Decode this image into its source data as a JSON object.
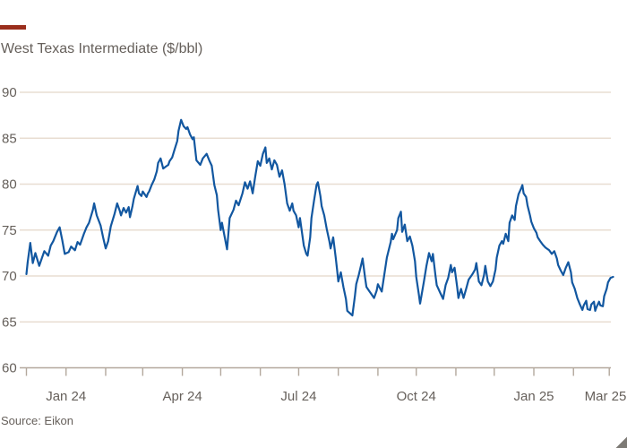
{
  "header": {
    "title": "West Texas Intermediate ($/bbl)"
  },
  "footer": {
    "source": "Source: Eikon"
  },
  "colors": {
    "line": "#1257a0",
    "grid": "#e8ddd2",
    "axis": "#b3a89d",
    "text": "#66605b",
    "background": "#ffffff",
    "brand_bar": "#9a2e1c",
    "corner_wedge": "#7d7a75"
  },
  "chart_data": {
    "type": "line",
    "title": "West Texas Intermediate ($/bbl)",
    "source": "Source: Eikon",
    "xlabel": "",
    "ylabel": "$/bbl",
    "ylim": [
      60,
      90
    ],
    "y_ticks": [
      60,
      65,
      70,
      75,
      80,
      85,
      90
    ],
    "grid": "horizontal",
    "legend": "none",
    "x_range": [
      "2023-12-01",
      "2025-03-01"
    ],
    "x_minor_ticks": "monthly",
    "x_tick_labels": [
      {
        "date": "2024-01-01",
        "label": "Jan 24"
      },
      {
        "date": "2024-04-01",
        "label": "Apr 24"
      },
      {
        "date": "2024-07-01",
        "label": "Jul 24"
      },
      {
        "date": "2024-10-01",
        "label": "Oct 24"
      },
      {
        "date": "2025-01-01",
        "label": "Jan 25"
      },
      {
        "date": "2025-03-01",
        "label": "Mar 25"
      }
    ],
    "series": [
      {
        "name": "WTI",
        "color": "#1257a0",
        "points": [
          [
            "2023-12-01",
            70.2
          ],
          [
            "2023-12-02",
            71.5
          ],
          [
            "2023-12-04",
            73.6
          ],
          [
            "2023-12-06",
            71.4
          ],
          [
            "2023-12-08",
            72.5
          ],
          [
            "2023-12-11",
            71.1
          ],
          [
            "2023-12-13",
            71.9
          ],
          [
            "2023-12-15",
            72.7
          ],
          [
            "2023-12-18",
            72.2
          ],
          [
            "2023-12-20",
            73.3
          ],
          [
            "2023-12-22",
            73.8
          ],
          [
            "2023-12-25",
            74.8
          ],
          [
            "2023-12-27",
            75.3
          ],
          [
            "2023-12-29",
            73.9
          ],
          [
            "2023-12-31",
            72.4
          ],
          [
            "2024-01-03",
            72.6
          ],
          [
            "2024-01-05",
            73.2
          ],
          [
            "2024-01-08",
            72.8
          ],
          [
            "2024-01-10",
            73.7
          ],
          [
            "2024-01-12",
            73.4
          ],
          [
            "2024-01-15",
            74.6
          ],
          [
            "2024-01-17",
            75.3
          ],
          [
            "2024-01-19",
            75.8
          ],
          [
            "2024-01-22",
            77.2
          ],
          [
            "2024-01-23",
            77.9
          ],
          [
            "2024-01-25",
            76.6
          ],
          [
            "2024-01-28",
            75.5
          ],
          [
            "2024-01-30",
            74.2
          ],
          [
            "2024-02-01",
            73.0
          ],
          [
            "2024-02-03",
            73.8
          ],
          [
            "2024-02-05",
            75.4
          ],
          [
            "2024-02-08",
            76.8
          ],
          [
            "2024-02-10",
            77.9
          ],
          [
            "2024-02-12",
            77.1
          ],
          [
            "2024-02-13",
            76.6
          ],
          [
            "2024-02-15",
            77.4
          ],
          [
            "2024-02-17",
            76.9
          ],
          [
            "2024-02-19",
            77.5
          ],
          [
            "2024-02-20",
            76.4
          ],
          [
            "2024-02-22",
            77.6
          ],
          [
            "2024-02-23",
            78.4
          ],
          [
            "2024-02-26",
            79.8
          ],
          [
            "2024-02-27",
            79.0
          ],
          [
            "2024-02-29",
            78.7
          ],
          [
            "2024-03-01",
            79.2
          ],
          [
            "2024-03-04",
            78.6
          ],
          [
            "2024-03-05",
            79.0
          ],
          [
            "2024-03-06",
            79.2
          ],
          [
            "2024-03-08",
            79.9
          ],
          [
            "2024-03-10",
            80.5
          ],
          [
            "2024-03-12",
            81.4
          ],
          [
            "2024-03-13",
            82.3
          ],
          [
            "2024-03-15",
            82.8
          ],
          [
            "2024-03-17",
            81.7
          ],
          [
            "2024-03-19",
            81.9
          ],
          [
            "2024-03-21",
            82.1
          ],
          [
            "2024-03-22",
            82.5
          ],
          [
            "2024-03-24",
            82.9
          ],
          [
            "2024-03-26",
            83.8
          ],
          [
            "2024-03-28",
            84.7
          ],
          [
            "2024-03-29",
            85.8
          ],
          [
            "2024-03-31",
            87.0
          ],
          [
            "2024-04-02",
            86.3
          ],
          [
            "2024-04-04",
            86.0
          ],
          [
            "2024-04-05",
            86.2
          ],
          [
            "2024-04-07",
            85.4
          ],
          [
            "2024-04-09",
            84.9
          ],
          [
            "2024-04-10",
            85.1
          ],
          [
            "2024-04-12",
            82.6
          ],
          [
            "2024-04-15",
            82.1
          ],
          [
            "2024-04-17",
            82.8
          ],
          [
            "2024-04-20",
            83.3
          ],
          [
            "2024-04-22",
            82.6
          ],
          [
            "2024-04-24",
            82.0
          ],
          [
            "2024-04-26",
            79.9
          ],
          [
            "2024-04-28",
            78.8
          ],
          [
            "2024-04-29",
            77.2
          ],
          [
            "2024-05-01",
            75.0
          ],
          [
            "2024-05-02",
            75.8
          ],
          [
            "2024-05-06",
            72.9
          ],
          [
            "2024-05-08",
            76.3
          ],
          [
            "2024-05-11",
            77.2
          ],
          [
            "2024-05-13",
            78.2
          ],
          [
            "2024-05-15",
            77.7
          ],
          [
            "2024-05-18",
            79.0
          ],
          [
            "2024-05-20",
            80.2
          ],
          [
            "2024-05-22",
            79.5
          ],
          [
            "2024-05-24",
            80.3
          ],
          [
            "2024-05-26",
            79.0
          ],
          [
            "2024-05-28",
            80.8
          ],
          [
            "2024-05-30",
            82.5
          ],
          [
            "2024-06-01",
            82.0
          ],
          [
            "2024-06-03",
            83.3
          ],
          [
            "2024-06-05",
            84.0
          ],
          [
            "2024-06-06",
            82.3
          ],
          [
            "2024-06-08",
            82.8
          ],
          [
            "2024-06-10",
            81.6
          ],
          [
            "2024-06-12",
            82.6
          ],
          [
            "2024-06-14",
            82.1
          ],
          [
            "2024-06-16",
            80.8
          ],
          [
            "2024-06-18",
            81.5
          ],
          [
            "2024-06-20",
            80.0
          ],
          [
            "2024-06-22",
            77.9
          ],
          [
            "2024-06-24",
            77.1
          ],
          [
            "2024-06-26",
            77.9
          ],
          [
            "2024-06-27",
            77.1
          ],
          [
            "2024-06-29",
            76.6
          ],
          [
            "2024-07-01",
            75.3
          ],
          [
            "2024-07-02",
            76.3
          ],
          [
            "2024-07-05",
            73.3
          ],
          [
            "2024-07-07",
            72.4
          ],
          [
            "2024-07-08",
            72.2
          ],
          [
            "2024-07-10",
            74.2
          ],
          [
            "2024-07-11",
            76.3
          ],
          [
            "2024-07-13",
            78.2
          ],
          [
            "2024-07-15",
            79.9
          ],
          [
            "2024-07-16",
            80.2
          ],
          [
            "2024-07-18",
            78.7
          ],
          [
            "2024-07-19",
            77.6
          ],
          [
            "2024-07-21",
            76.6
          ],
          [
            "2024-07-23",
            75.1
          ],
          [
            "2024-07-25",
            73.8
          ],
          [
            "2024-07-26",
            73.0
          ],
          [
            "2024-07-28",
            74.2
          ],
          [
            "2024-07-30",
            72.0
          ],
          [
            "2024-07-31",
            70.7
          ],
          [
            "2024-08-01",
            69.4
          ],
          [
            "2024-08-03",
            70.4
          ],
          [
            "2024-08-05",
            68.8
          ],
          [
            "2024-08-07",
            67.5
          ],
          [
            "2024-08-08",
            66.2
          ],
          [
            "2024-08-12",
            65.7
          ],
          [
            "2024-08-14",
            67.8
          ],
          [
            "2024-08-15",
            69.1
          ],
          [
            "2024-08-17",
            70.1
          ],
          [
            "2024-08-19",
            71.3
          ],
          [
            "2024-08-20",
            71.9
          ],
          [
            "2024-08-22",
            69.8
          ],
          [
            "2024-08-23",
            68.8
          ],
          [
            "2024-08-25",
            68.4
          ],
          [
            "2024-08-27",
            68.0
          ],
          [
            "2024-08-29",
            67.6
          ],
          [
            "2024-08-31",
            68.4
          ],
          [
            "2024-09-01",
            69.1
          ],
          [
            "2024-09-04",
            68.3
          ],
          [
            "2024-09-08",
            72.0
          ],
          [
            "2024-09-11",
            73.7
          ],
          [
            "2024-09-12",
            74.6
          ],
          [
            "2024-09-13",
            74.0
          ],
          [
            "2024-09-16",
            75.0
          ],
          [
            "2024-09-17",
            76.3
          ],
          [
            "2024-09-19",
            77.0
          ],
          [
            "2024-09-20",
            74.8
          ],
          [
            "2024-09-22",
            75.6
          ],
          [
            "2024-09-24",
            73.8
          ],
          [
            "2024-09-26",
            74.3
          ],
          [
            "2024-09-28",
            73.3
          ],
          [
            "2024-09-30",
            71.6
          ],
          [
            "2024-10-01",
            69.9
          ],
          [
            "2024-10-03",
            68.0
          ],
          [
            "2024-10-04",
            67.0
          ],
          [
            "2024-10-07",
            69.4
          ],
          [
            "2024-10-09",
            71.1
          ],
          [
            "2024-10-11",
            72.5
          ],
          [
            "2024-10-13",
            71.6
          ],
          [
            "2024-10-14",
            72.4
          ],
          [
            "2024-10-16",
            70.1
          ],
          [
            "2024-10-17",
            69.0
          ],
          [
            "2024-10-20",
            68.1
          ],
          [
            "2024-10-22",
            67.5
          ],
          [
            "2024-10-24",
            69.0
          ],
          [
            "2024-10-26",
            69.8
          ],
          [
            "2024-10-28",
            71.2
          ],
          [
            "2024-10-29",
            70.4
          ],
          [
            "2024-10-31",
            70.9
          ],
          [
            "2024-11-02",
            68.8
          ],
          [
            "2024-11-03",
            67.6
          ],
          [
            "2024-11-05",
            68.6
          ],
          [
            "2024-11-07",
            67.6
          ],
          [
            "2024-11-09",
            68.6
          ],
          [
            "2024-11-11",
            69.6
          ],
          [
            "2024-11-14",
            70.2
          ],
          [
            "2024-11-16",
            70.7
          ],
          [
            "2024-11-17",
            71.4
          ],
          [
            "2024-11-19",
            69.4
          ],
          [
            "2024-11-21",
            69.0
          ],
          [
            "2024-11-23",
            70.1
          ],
          [
            "2024-11-24",
            71.1
          ],
          [
            "2024-11-26",
            69.4
          ],
          [
            "2024-11-28",
            68.9
          ],
          [
            "2024-11-30",
            69.4
          ],
          [
            "2024-12-02",
            70.7
          ],
          [
            "2024-12-03",
            72.0
          ],
          [
            "2024-12-05",
            73.3
          ],
          [
            "2024-12-07",
            73.8
          ],
          [
            "2024-12-08",
            73.5
          ],
          [
            "2024-12-10",
            74.6
          ],
          [
            "2024-12-12",
            73.8
          ],
          [
            "2024-12-13",
            75.8
          ],
          [
            "2024-12-15",
            76.6
          ],
          [
            "2024-12-17",
            76.1
          ],
          [
            "2024-12-18",
            77.6
          ],
          [
            "2024-12-20",
            78.9
          ],
          [
            "2024-12-22",
            79.5
          ],
          [
            "2024-12-23",
            79.9
          ],
          [
            "2024-12-24",
            79.0
          ],
          [
            "2024-12-26",
            78.6
          ],
          [
            "2024-12-27",
            77.7
          ],
          [
            "2024-12-29",
            76.6
          ],
          [
            "2024-12-30",
            75.9
          ],
          [
            "2025-01-01",
            75.2
          ],
          [
            "2025-01-03",
            74.7
          ],
          [
            "2025-01-04",
            74.2
          ],
          [
            "2025-01-06",
            73.8
          ],
          [
            "2025-01-08",
            73.4
          ],
          [
            "2025-01-10",
            73.1
          ],
          [
            "2025-01-13",
            72.8
          ],
          [
            "2025-01-15",
            72.4
          ],
          [
            "2025-01-17",
            72.7
          ],
          [
            "2025-01-19",
            71.9
          ],
          [
            "2025-01-20",
            71.2
          ],
          [
            "2025-01-22",
            70.6
          ],
          [
            "2025-01-24",
            70.1
          ],
          [
            "2025-01-26",
            70.9
          ],
          [
            "2025-01-28",
            71.5
          ],
          [
            "2025-01-30",
            70.4
          ],
          [
            "2025-01-31",
            69.3
          ],
          [
            "2025-02-02",
            68.6
          ],
          [
            "2025-02-04",
            67.6
          ],
          [
            "2025-02-06",
            66.9
          ],
          [
            "2025-02-08",
            66.3
          ],
          [
            "2025-02-09",
            66.8
          ],
          [
            "2025-02-11",
            67.3
          ],
          [
            "2025-02-12",
            66.4
          ],
          [
            "2025-02-14",
            66.3
          ],
          [
            "2025-02-15",
            66.9
          ],
          [
            "2025-02-17",
            67.2
          ],
          [
            "2025-02-18",
            66.2
          ],
          [
            "2025-02-19",
            66.6
          ],
          [
            "2025-02-21",
            67.2
          ],
          [
            "2025-02-22",
            66.8
          ],
          [
            "2025-02-24",
            66.7
          ],
          [
            "2025-02-25",
            67.8
          ],
          [
            "2025-02-27",
            68.6
          ],
          [
            "2025-02-28",
            69.3
          ],
          [
            "2025-03-02",
            69.8
          ],
          [
            "2025-03-04",
            69.9
          ]
        ]
      }
    ]
  }
}
